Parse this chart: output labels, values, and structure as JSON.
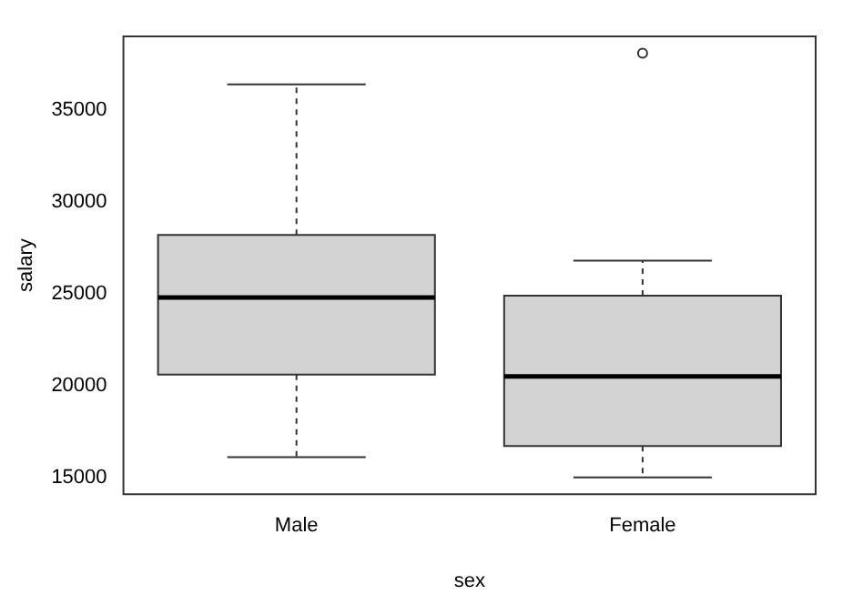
{
  "chart_data": {
    "type": "box",
    "xlabel": "sex",
    "ylabel": "salary",
    "categories": [
      "Male",
      "Female"
    ],
    "color": "#d3d3d3",
    "boxes": [
      {
        "low": 16100,
        "q1": 20600,
        "median": 24800,
        "q3": 28200,
        "high": 36400
      },
      {
        "low": 15000,
        "q1": 16700,
        "median": 20500,
        "q3": 24900,
        "high": 26800,
        "outliers": [
          38100
        ]
      }
    ],
    "ylim": [
      14080,
      39020
    ],
    "yticks": [
      15000,
      20000,
      25000,
      30000,
      35000
    ]
  }
}
